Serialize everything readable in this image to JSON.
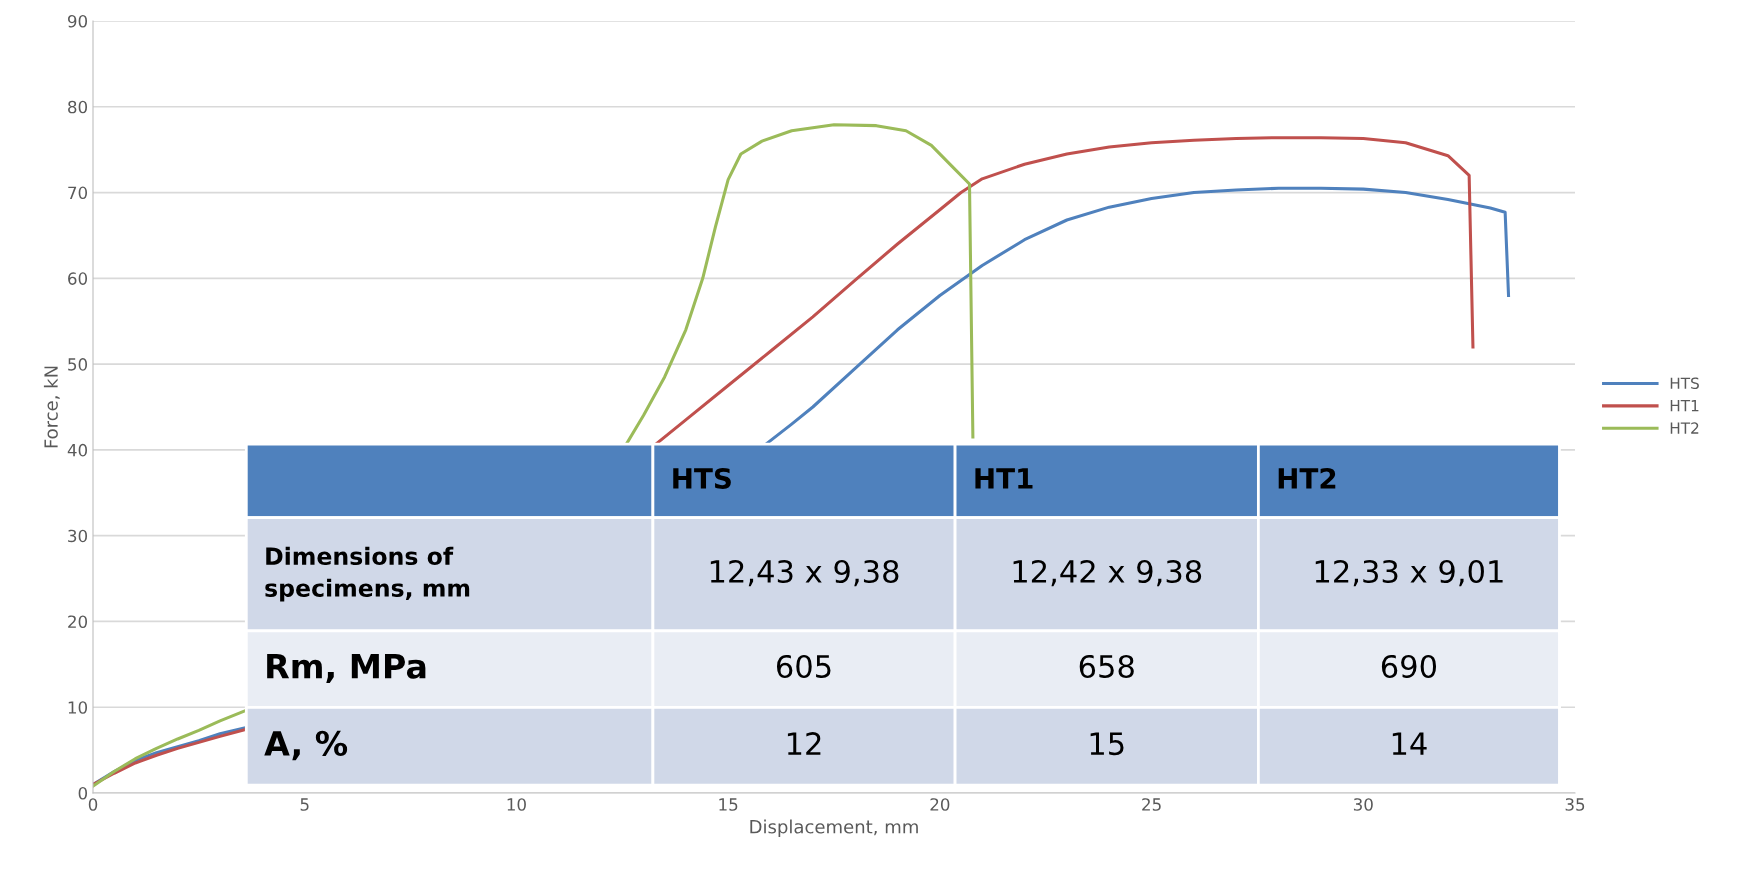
{
  "chart_data": {
    "type": "line",
    "xlabel": "Displacement, mm",
    "ylabel": "Force, kN",
    "xlim": [
      0,
      35
    ],
    "xticks": [
      0,
      5,
      10,
      15,
      20,
      25,
      30,
      35
    ],
    "ylim": [
      0,
      90
    ],
    "yticks": [
      0,
      10,
      20,
      30,
      40,
      50,
      60,
      70,
      80,
      90
    ],
    "grid": "y",
    "legend": "right",
    "marker": "none",
    "line_style": "solid",
    "series": [
      {
        "name": "HTS",
        "color": "#4f81bd",
        "x": [
          0,
          0.5,
          1,
          1.5,
          2,
          2.5,
          3,
          3.6,
          9,
          15.9,
          16.5,
          17,
          18,
          19,
          20,
          21,
          22,
          23,
          24,
          25,
          26,
          27,
          28,
          29,
          30,
          31,
          32,
          33,
          33.35,
          33.43
        ],
        "values": [
          1,
          2.5,
          3.8,
          4.7,
          5.4,
          6.1,
          6.9,
          7.6,
          null,
          40.7,
          43,
          45,
          49.5,
          54,
          58,
          61.5,
          64.5,
          66.8,
          68.3,
          69.3,
          70,
          70.3,
          70.5,
          70.5,
          70.4,
          70,
          69.2,
          68.2,
          67.7,
          58
        ]
      },
      {
        "name": "HT1",
        "color": "#c0504d",
        "x": [
          0,
          0.5,
          1,
          1.5,
          2,
          2.5,
          3,
          3.6,
          9,
          13.3,
          14,
          15,
          16,
          17,
          18,
          19,
          20,
          20.5,
          21,
          22,
          23,
          24,
          25,
          26,
          27,
          28,
          29,
          30,
          31,
          32,
          32.5,
          32.59
        ],
        "values": [
          1,
          2.3,
          3.5,
          4.4,
          5.2,
          5.9,
          6.6,
          7.4,
          null,
          40.7,
          43.5,
          47.5,
          51.5,
          55.5,
          59.8,
          64,
          68,
          70,
          71.6,
          73.3,
          74.5,
          75.3,
          75.8,
          76.1,
          76.3,
          76.4,
          76.4,
          76.3,
          75.8,
          74.3,
          72,
          52
        ]
      },
      {
        "name": "HT2",
        "color": "#9bbb59",
        "x": [
          0,
          0.5,
          1,
          1.5,
          2,
          2.5,
          3,
          3.6,
          9,
          12.6,
          13,
          13.5,
          14,
          14.4,
          14.7,
          15,
          15.3,
          15.8,
          16.5,
          17.5,
          18.5,
          19.2,
          19.8,
          20.3,
          20.7,
          20.78
        ],
        "values": [
          0.8,
          2.5,
          4,
          5.2,
          6.3,
          7.3,
          8.4,
          9.6,
          null,
          40.7,
          44,
          48.5,
          54,
          60,
          66,
          71.5,
          74.5,
          76,
          77.2,
          77.9,
          77.8,
          77.2,
          75.5,
          73,
          71,
          41.5
        ]
      }
    ],
    "annotations": [
      "HTS",
      "HT1",
      "HT2",
      "Dimensions of specimens, mm",
      "12,43 x 9,38",
      "12,42 x 9,38",
      "12,33 x 9,01",
      "Rm, MPa",
      "605",
      "658",
      "690",
      "A, %",
      "12",
      "15",
      "14"
    ]
  }
}
